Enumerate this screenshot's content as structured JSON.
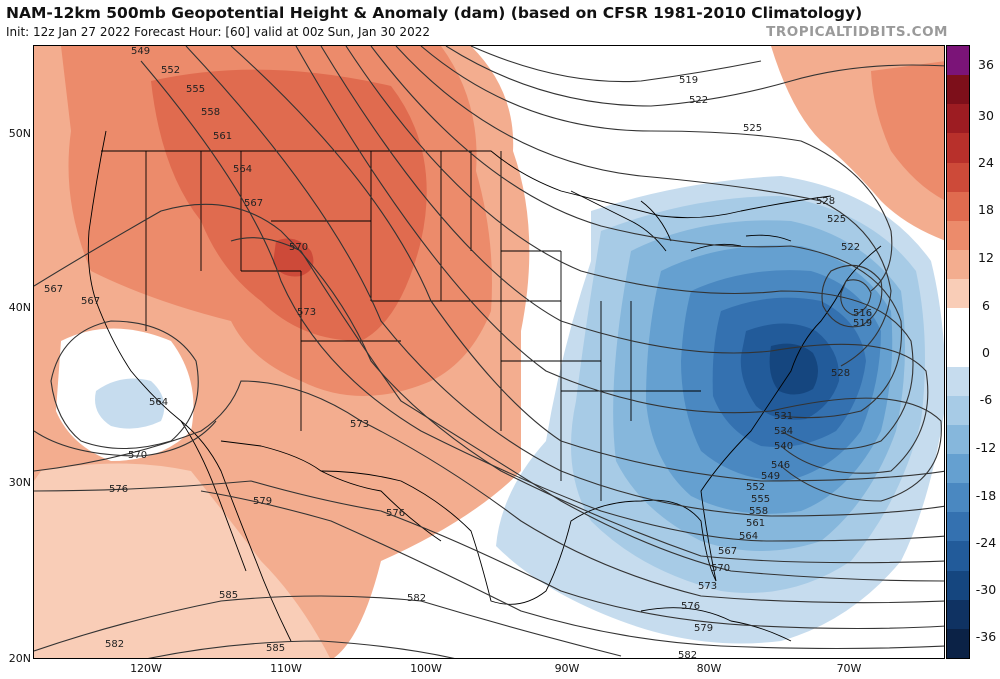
{
  "header": {
    "title": "NAM-12km 500mb Geopotential Height & Anomaly (dam) (based on CFSR 1981-2010 Climatology)",
    "subtitle": "Init: 12z Jan 27 2022   Forecast Hour: [60]   valid at 00z Sun, Jan 30 2022",
    "brand": "TROPICALTIDBITS.COM"
  },
  "map": {
    "lat_labels": [
      "50N",
      "40N",
      "30N",
      "20N"
    ],
    "lon_labels": [
      "120W",
      "110W",
      "100W",
      "90W",
      "80W",
      "70W"
    ],
    "contour_labels": [
      "519",
      "522",
      "525",
      "528",
      "531",
      "534",
      "540",
      "546",
      "549",
      "552",
      "555",
      "558",
      "561",
      "564",
      "567",
      "570",
      "573",
      "576",
      "579",
      "582",
      "585",
      "549",
      "552",
      "555",
      "558",
      "561",
      "564",
      "567",
      "570",
      "573",
      "567",
      "567",
      "564",
      "570",
      "573",
      "576",
      "579",
      "576",
      "582",
      "582",
      "585",
      "516",
      "519",
      "522",
      "525",
      "528"
    ]
  },
  "colorbar": {
    "labels": [
      "36",
      "30",
      "24",
      "18",
      "12",
      "6",
      "0",
      "-6",
      "-12",
      "-18",
      "-24",
      "-30",
      "-36"
    ],
    "colors": [
      "#7b1478",
      "#7d0f1a",
      "#9d1c22",
      "#b8302b",
      "#cd4a39",
      "#e06b4f",
      "#ec8b6b",
      "#f3ad8f",
      "#f9cdb7",
      "#ffffff",
      "#ffffff",
      "#c6dcee",
      "#a7cbe6",
      "#86b7dc",
      "#65a0d0",
      "#4a88c1",
      "#3471b0",
      "#225b9a",
      "#15467f",
      "#0f3262",
      "#0b2246"
    ]
  }
}
